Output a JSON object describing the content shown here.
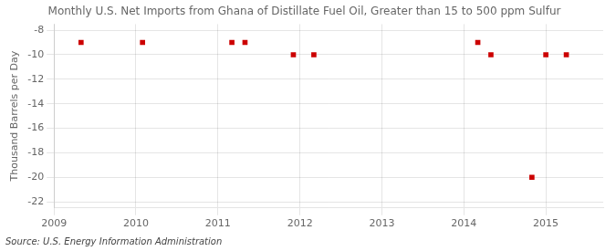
{
  "chart_data": {
    "type": "scatter",
    "title": "Monthly U.S. Net Imports from Ghana of Distillate Fuel Oil, Greater than 15 to 500 ppm Sulfur",
    "ylabel": "Thousand Barrels per Day",
    "source": "Source: U.S. Energy Information Administration",
    "x": [
      2009.33,
      2010.08,
      2011.17,
      2011.33,
      2011.92,
      2012.17,
      2014.17,
      2014.33,
      2014.83,
      2015.0,
      2015.25
    ],
    "values": [
      -9,
      -9,
      -9,
      -9,
      -10,
      -10,
      -9,
      -10,
      -20,
      -10,
      -10
    ],
    "color": "#cc0000",
    "marker": "square",
    "xlim": [
      2009,
      2015.7
    ],
    "ylim": [
      -22.5,
      -7.5
    ],
    "xticks": [
      2009,
      2010,
      2011,
      2012,
      2013,
      2014,
      2015
    ],
    "yticks": [
      -8,
      -10,
      -12,
      -14,
      -16,
      -18,
      -20,
      -22
    ],
    "grid": true
  }
}
